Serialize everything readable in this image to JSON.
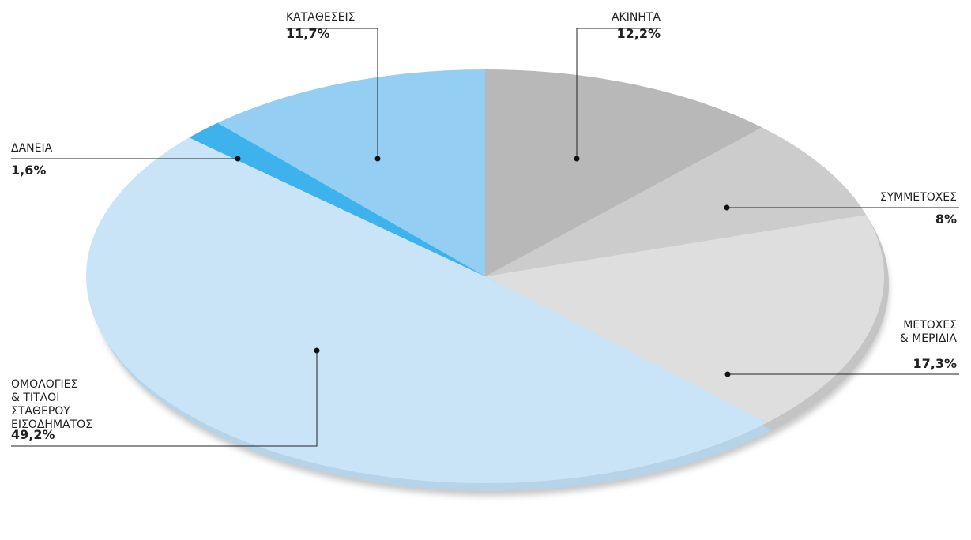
{
  "chart_data": {
    "type": "pie",
    "title": "",
    "slices": [
      {
        "label": "ΑΚΙΝΗΤΑ",
        "value": 12.2,
        "display": "12,2%",
        "color": "#b8b8b8"
      },
      {
        "label": "ΣΥΜΜΕΤΟΧΕΣ",
        "value": 8,
        "display": "8%",
        "color": "#cccccc"
      },
      {
        "label": "ΜΕΤΟΧΕΣ\n& ΜΕΡΙΔΙΑ",
        "value": 17.3,
        "display": "17,3%",
        "color": "#dedede"
      },
      {
        "label": "ΟΜΟΛΟΓΙΕΣ\n& ΤΙΤΛΟΙ\nΣΤΑΘΕΡΟΥ\nΕΙΣΟΔΗΜΑΤΟΣ",
        "value": 49.2,
        "display": "49,2%",
        "color": "#c9e4f6"
      },
      {
        "label": "ΔΑΝΕΙΑ",
        "value": 1.6,
        "display": "1,6%",
        "color": "#3db2ec"
      },
      {
        "label": "ΚΑΤΑΘΕΣΕΙΣ",
        "value": 11.7,
        "display": "11,7%",
        "color": "#94cff3"
      }
    ],
    "start_angle": "12 o'clock",
    "direction": "clockwise",
    "legend": "none"
  }
}
